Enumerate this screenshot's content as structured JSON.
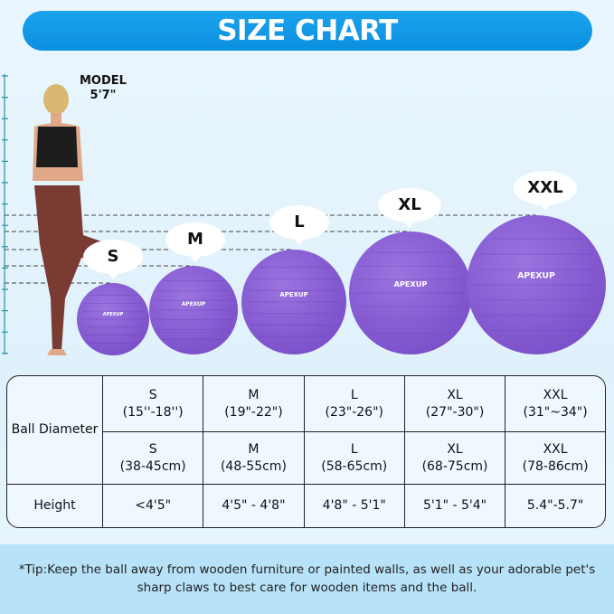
{
  "title": "SIZE CHART",
  "model": {
    "label": "MODEL",
    "height": "5'7\""
  },
  "brand": "APEXUP",
  "ball_color": "#7b4fc9",
  "accent": "#0f97e5",
  "sizes": [
    "S",
    "M",
    "L",
    "XL",
    "XXL"
  ],
  "table": {
    "row_header_diameter": "Ball Diameter",
    "row_header_height": "Height",
    "inches": [
      [
        "S",
        "(15''-18'')"
      ],
      [
        "M",
        "(19\"-22\")"
      ],
      [
        "L",
        "(23\"-26\")"
      ],
      [
        "XL",
        "(27\"-30\")"
      ],
      [
        "XXL",
        "(31\"~34\")"
      ]
    ],
    "cm": [
      [
        "S",
        "(38-45cm)"
      ],
      [
        "M",
        "(48-55cm)"
      ],
      [
        "L",
        "(58-65cm)"
      ],
      [
        "XL",
        "(68-75cm)"
      ],
      [
        "XXL",
        "(78-86cm)"
      ]
    ],
    "heights": [
      "<4'5\"",
      "4'5\" - 4'8\"",
      "4'8\" - 5'1\"",
      "5'1\" - 5'4\"",
      "5.4\"-5.7\""
    ]
  },
  "tip": "*Tip:Keep the ball away from wooden furniture or painted walls, as well as your adorable pet's sharp claws to best care for wooden items and the ball."
}
